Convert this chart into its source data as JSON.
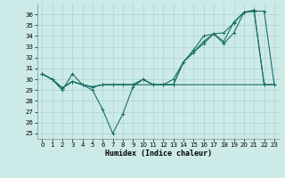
{
  "xlabel": "Humidex (Indice chaleur)",
  "background_color": "#cceae8",
  "grid_color": "#aad4d0",
  "line_color": "#1a7068",
  "x_ticks": [
    0,
    1,
    2,
    3,
    4,
    5,
    6,
    7,
    8,
    9,
    10,
    11,
    12,
    13,
    14,
    15,
    16,
    17,
    18,
    19,
    20,
    21,
    22,
    23
  ],
  "y_ticks": [
    25,
    26,
    27,
    28,
    29,
    30,
    31,
    32,
    33,
    34,
    35,
    36
  ],
  "ylim": [
    24.5,
    37.0
  ],
  "xlim": [
    -0.5,
    23.5
  ],
  "series1_y": [
    30.5,
    30.0,
    29.0,
    30.5,
    29.5,
    29.0,
    27.2,
    25.0,
    26.8,
    29.3,
    30.0,
    29.5,
    29.5,
    29.5,
    31.6,
    32.5,
    33.3,
    34.2,
    33.3,
    34.3,
    36.2,
    36.3,
    29.5,
    29.5
  ],
  "series2_y": [
    30.5,
    30.0,
    29.2,
    29.8,
    29.5,
    29.3,
    29.5,
    29.5,
    29.5,
    29.5,
    29.5,
    29.5,
    29.5,
    29.5,
    29.5,
    29.5,
    29.5,
    29.5,
    29.5,
    29.5,
    29.5,
    29.5,
    29.5,
    29.5
  ],
  "series3_y": [
    30.5,
    30.0,
    29.2,
    29.8,
    29.5,
    29.3,
    29.5,
    29.5,
    29.5,
    29.5,
    30.0,
    29.5,
    29.5,
    30.0,
    31.6,
    32.5,
    33.5,
    34.2,
    34.3,
    35.2,
    36.2,
    36.3,
    36.3,
    29.5
  ],
  "series4_y": [
    30.5,
    30.0,
    29.2,
    29.8,
    29.5,
    29.3,
    29.5,
    29.5,
    29.5,
    29.5,
    30.0,
    29.5,
    29.5,
    29.5,
    31.6,
    32.7,
    34.0,
    34.2,
    33.5,
    35.3,
    36.2,
    36.4,
    29.5,
    29.5
  ],
  "lw": 0.8,
  "ms": 2.5,
  "tick_fontsize": 5,
  "xlabel_fontsize": 6
}
